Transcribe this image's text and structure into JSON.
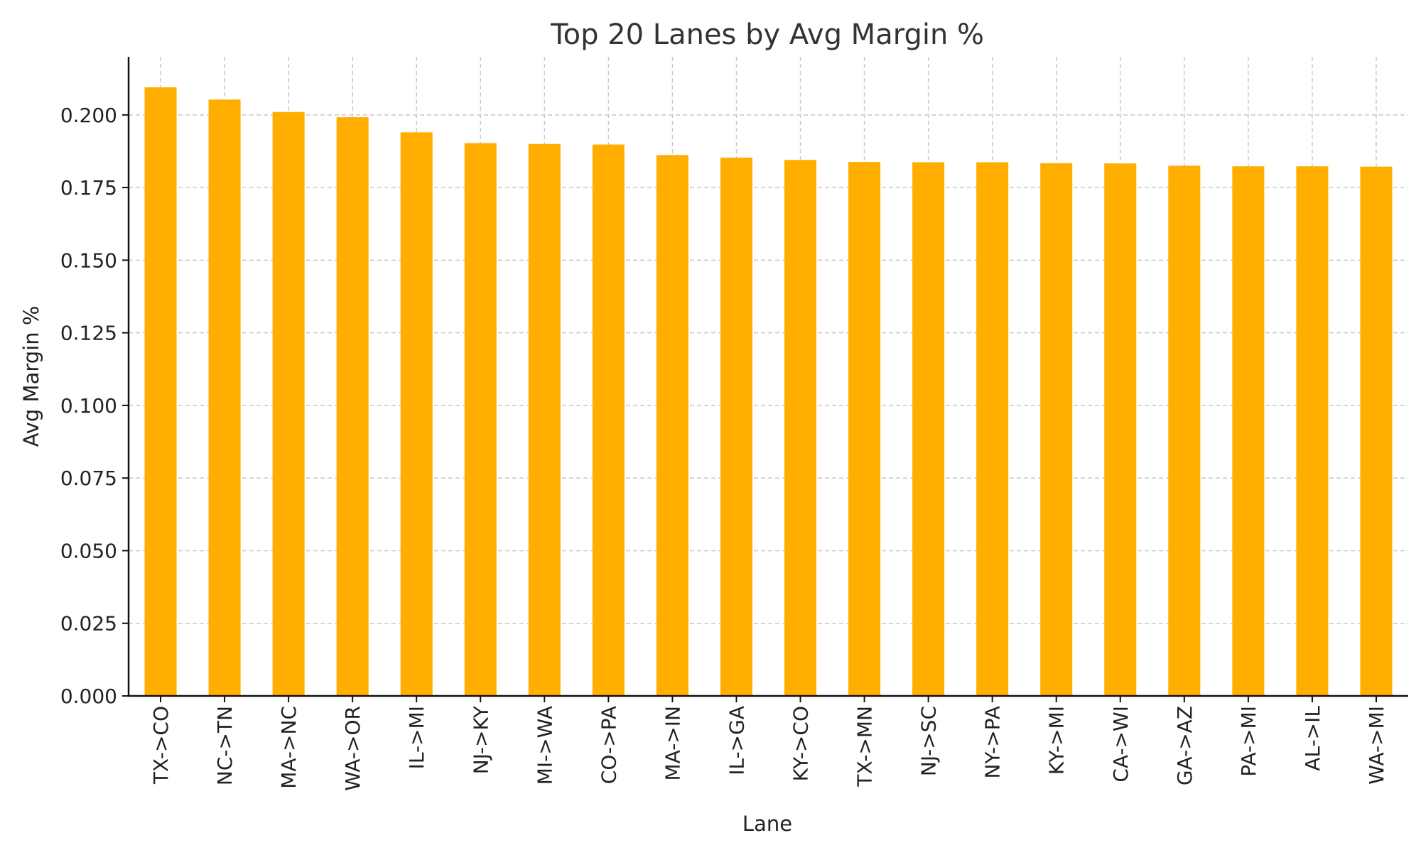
{
  "chart_data": {
    "type": "bar",
    "title": "Top 20 Lanes by Avg Margin %",
    "xlabel": "Lane",
    "ylabel": "Avg Margin %",
    "categories": [
      "TX->CO",
      "NC->TN",
      "MA->NC",
      "WA->OR",
      "IL->MI",
      "NJ->KY",
      "MI->WA",
      "CO->PA",
      "MA->IN",
      "IL->GA",
      "KY->CO",
      "TX->MN",
      "NJ->SC",
      "NY->PA",
      "KY->MI",
      "CA->WI",
      "GA->AZ",
      "PA->MI",
      "AL->IL",
      "WA->MI"
    ],
    "values": [
      0.2095,
      0.2053,
      0.201,
      0.1992,
      0.194,
      0.1903,
      0.19,
      0.1898,
      0.1862,
      0.1853,
      0.1845,
      0.1838,
      0.1837,
      0.1837,
      0.1834,
      0.1833,
      0.1825,
      0.1823,
      0.1823,
      0.1822
    ],
    "ylim": [
      0,
      0.22
    ],
    "yticks": [
      "0.000",
      "0.025",
      "0.050",
      "0.075",
      "0.100",
      "0.125",
      "0.150",
      "0.175",
      "0.200"
    ],
    "grid": true,
    "legend": "none",
    "bar_color": "#FFAE00"
  }
}
